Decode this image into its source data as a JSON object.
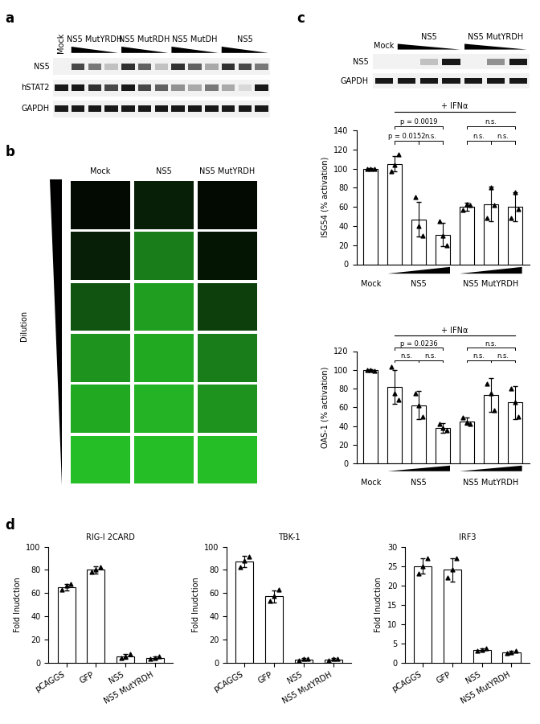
{
  "panel_labels": [
    "a",
    "b",
    "c",
    "d"
  ],
  "blot_a": {
    "lanes": [
      "Mock",
      "NS5 MutYRDH",
      "NS5 MutRDH",
      "NS5 MutDH",
      "NS5"
    ],
    "rows": [
      {
        "name": "NS5",
        "intensity": [
          0,
          0.7,
          0.5,
          0.2,
          0.8,
          0.6,
          0.2,
          0.8,
          0.6,
          0.3,
          0.8,
          0.7,
          0.5
        ]
      },
      {
        "name": "hSTAT2",
        "intensity": [
          0.9,
          0.9,
          0.8,
          0.7,
          0.9,
          0.7,
          0.6,
          0.4,
          0.3,
          0.5,
          0.3,
          0.1,
          0.9
        ]
      },
      {
        "name": "GAPDH",
        "intensity": [
          0.9,
          0.9,
          0.9,
          0.9,
          0.9,
          0.9,
          0.9,
          0.9,
          0.9,
          0.9,
          0.9,
          0.9,
          0.9
        ]
      }
    ]
  },
  "images_b": {
    "columns": [
      "Mock",
      "NS5",
      "NS5 MutYRDH"
    ],
    "axis_label": "Dilution",
    "gfp_level": [
      [
        0.05,
        0.15,
        0.4,
        0.7,
        0.8,
        0.9
      ],
      [
        0.15,
        0.6,
        0.75,
        0.8,
        0.85,
        0.9
      ],
      [
        0.05,
        0.1,
        0.3,
        0.6,
        0.7,
        0.9
      ]
    ]
  },
  "blot_c": {
    "lanes": [
      "Mock",
      "NS5",
      "NS5 MutYRDH"
    ],
    "rows": [
      {
        "name": "NS5",
        "intensity": [
          0,
          0,
          0.2,
          0.9,
          0,
          0.4,
          0.9
        ]
      },
      {
        "name": "GAPDH",
        "intensity": [
          0.9,
          0.9,
          0.9,
          0.9,
          0.9,
          0.9,
          0.9
        ]
      }
    ]
  },
  "chart_data": [
    {
      "type": "bar",
      "ylabel": "ISG54 (% activation)",
      "color": "#ffffff",
      "categories": [
        "Mock",
        null,
        "NS5",
        null,
        null,
        "NS5 MutYRDH",
        null
      ],
      "values": [
        100,
        105,
        47,
        31,
        60,
        63,
        60
      ],
      "errors": [
        0.5,
        8,
        18,
        12,
        4,
        18,
        15
      ],
      "points": [
        [
          100,
          100,
          100
        ],
        [
          97,
          104,
          115
        ],
        [
          70,
          40,
          30
        ],
        [
          45,
          30,
          20
        ],
        [
          57,
          63,
          62
        ],
        [
          48,
          80,
          62
        ],
        [
          48,
          75,
          58
        ]
      ],
      "ylim": [
        0,
        140
      ],
      "yticks": [
        0,
        20,
        40,
        60,
        80,
        100,
        120,
        140
      ],
      "treatment": {
        "between": [
          1,
          6
        ],
        "text": "+ IFNα"
      },
      "comparisons": [
        {
          "between": [
            1,
            3
          ],
          "text": "p = 0.0019"
        },
        {
          "between": [
            1,
            2
          ],
          "text": "p = 0.0152"
        },
        {
          "between": [
            2,
            3
          ],
          "text": "n.s."
        },
        {
          "between": [
            4,
            6
          ],
          "text": "n.s."
        },
        {
          "between": [
            4,
            5
          ],
          "text": "n.s."
        },
        {
          "between": [
            5,
            6
          ],
          "text": "n.s."
        }
      ]
    },
    {
      "type": "bar",
      "ylabel": "OAS-1 (% activation)",
      "color": "#ffffff",
      "categories": [
        "Mock",
        null,
        "NS5",
        null,
        null,
        "NS5 MutYRDH",
        null
      ],
      "values": [
        100,
        82,
        62,
        38,
        45,
        73,
        65
      ],
      "errors": [
        1,
        18,
        15,
        5,
        4,
        18,
        18
      ],
      "points": [
        [
          100,
          100,
          99
        ],
        [
          103,
          75,
          68
        ],
        [
          75,
          62,
          50
        ],
        [
          42,
          38,
          35
        ],
        [
          49,
          44,
          42
        ],
        [
          85,
          75,
          57
        ],
        [
          80,
          65,
          50
        ]
      ],
      "ylim": [
        0,
        120
      ],
      "yticks": [
        0,
        20,
        40,
        60,
        80,
        100,
        120
      ],
      "treatment": {
        "between": [
          1,
          6
        ],
        "text": "+ IFNα"
      },
      "comparisons": [
        {
          "between": [
            1,
            3
          ],
          "text": "p = 0.0236"
        },
        {
          "between": [
            1,
            2
          ],
          "text": "n.s."
        },
        {
          "between": [
            2,
            3
          ],
          "text": "n.s."
        },
        {
          "between": [
            4,
            6
          ],
          "text": "n.s."
        },
        {
          "between": [
            4,
            5
          ],
          "text": "n.s."
        },
        {
          "between": [
            5,
            6
          ],
          "text": "n.s."
        }
      ]
    },
    {
      "type": "bar",
      "title": "RIG-I 2CARD",
      "ylabel": "Fold Inudction",
      "color": "#ffffff",
      "categories": [
        "pCAGGS",
        "GFP",
        "NS5",
        "NS5 MutYRDH"
      ],
      "values": [
        65,
        80,
        5,
        4
      ],
      "errors": [
        3,
        3,
        2,
        1
      ],
      "points": [
        [
          63,
          66,
          68
        ],
        [
          78,
          80,
          82
        ],
        [
          4,
          5,
          7
        ],
        [
          3,
          4,
          5
        ]
      ],
      "ylim": [
        0,
        100
      ],
      "yticks": [
        0,
        20,
        40,
        60,
        80,
        100
      ]
    },
    {
      "type": "bar",
      "title": "TBK-1",
      "ylabel": "Fold Inudction",
      "color": "#ffffff",
      "categories": [
        "pCAGGS",
        "GFP",
        "NS5",
        "NS5 MutYRDH"
      ],
      "values": [
        87,
        57,
        2.5,
        2.5
      ],
      "errors": [
        5,
        5,
        1,
        1
      ],
      "points": [
        [
          82,
          88,
          91
        ],
        [
          53,
          57,
          63
        ],
        [
          2,
          3,
          3
        ],
        [
          2,
          3,
          3
        ]
      ],
      "ylim": [
        0,
        100
      ],
      "yticks": [
        0,
        20,
        40,
        60,
        80,
        100
      ]
    },
    {
      "type": "bar",
      "title": "IRF3",
      "ylabel": "Fold Inudction",
      "color": "#ffffff",
      "categories": [
        "pCAGGS",
        "GFP",
        "NS5",
        "NS5 MutYRDH"
      ],
      "values": [
        25,
        24,
        3.3,
        2.7
      ],
      "errors": [
        2,
        3,
        0.3,
        0.3
      ],
      "points": [
        [
          23,
          25,
          27
        ],
        [
          22,
          24,
          27
        ],
        [
          3,
          3.3,
          3.6
        ],
        [
          2.5,
          2.7,
          3
        ]
      ],
      "ylim": [
        0,
        30
      ],
      "yticks": [
        0,
        5,
        10,
        15,
        20,
        25,
        30
      ]
    }
  ]
}
